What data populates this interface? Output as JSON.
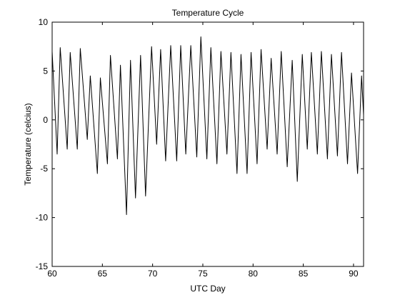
{
  "chart_data": {
    "type": "line",
    "title": "Temperature Cycle",
    "xlabel": "UTC Day",
    "ylabel": "Temperature (celcius)",
    "xlim": [
      60,
      91
    ],
    "ylim": [
      -15,
      10
    ],
    "xticks": [
      60,
      65,
      70,
      75,
      80,
      85,
      90
    ],
    "yticks": [
      -15,
      -10,
      -5,
      0,
      5,
      10
    ],
    "grid": false,
    "legend": "none",
    "line_color": "#000000",
    "series": [
      {
        "x": [
          60.0,
          60.5,
          60.8,
          61.5,
          61.8,
          62.5,
          62.8,
          63.5,
          63.8,
          64.5,
          64.8,
          65.5,
          65.8,
          66.5,
          66.8,
          67.4,
          67.8,
          68.3,
          68.8,
          69.3,
          69.9,
          70.4,
          70.8,
          71.3,
          71.8,
          72.4,
          72.8,
          73.3,
          73.8,
          74.4,
          74.8,
          75.4,
          75.8,
          76.4,
          76.8,
          77.4,
          77.8,
          78.4,
          78.8,
          79.4,
          79.8,
          80.4,
          80.8,
          81.4,
          81.8,
          82.4,
          82.8,
          83.4,
          83.9,
          84.4,
          84.9,
          85.4,
          85.8,
          86.4,
          86.8,
          87.4,
          87.8,
          88.4,
          88.8,
          89.4,
          89.8,
          90.4,
          90.8,
          91.0
        ],
        "y": [
          7.0,
          -3.5,
          7.4,
          -3.0,
          6.9,
          -3.0,
          7.3,
          -2.0,
          4.5,
          -5.5,
          4.3,
          -4.5,
          6.6,
          -4.0,
          5.6,
          -9.7,
          6.1,
          -8.0,
          6.6,
          -7.8,
          7.5,
          -2.5,
          7.2,
          -4.2,
          7.6,
          -4.2,
          7.6,
          -3.5,
          7.6,
          -3.8,
          8.5,
          -4.0,
          7.4,
          -4.5,
          7.0,
          -3.5,
          6.9,
          -5.5,
          6.7,
          -5.5,
          6.9,
          -4.5,
          7.2,
          -3.0,
          6.3,
          -3.5,
          7.0,
          -4.8,
          6.1,
          -6.3,
          6.7,
          -3.0,
          6.9,
          -3.5,
          7.0,
          -4.0,
          6.7,
          -3.7,
          6.9,
          -4.5,
          4.8,
          -5.5,
          4.5,
          0.5
        ]
      }
    ]
  }
}
